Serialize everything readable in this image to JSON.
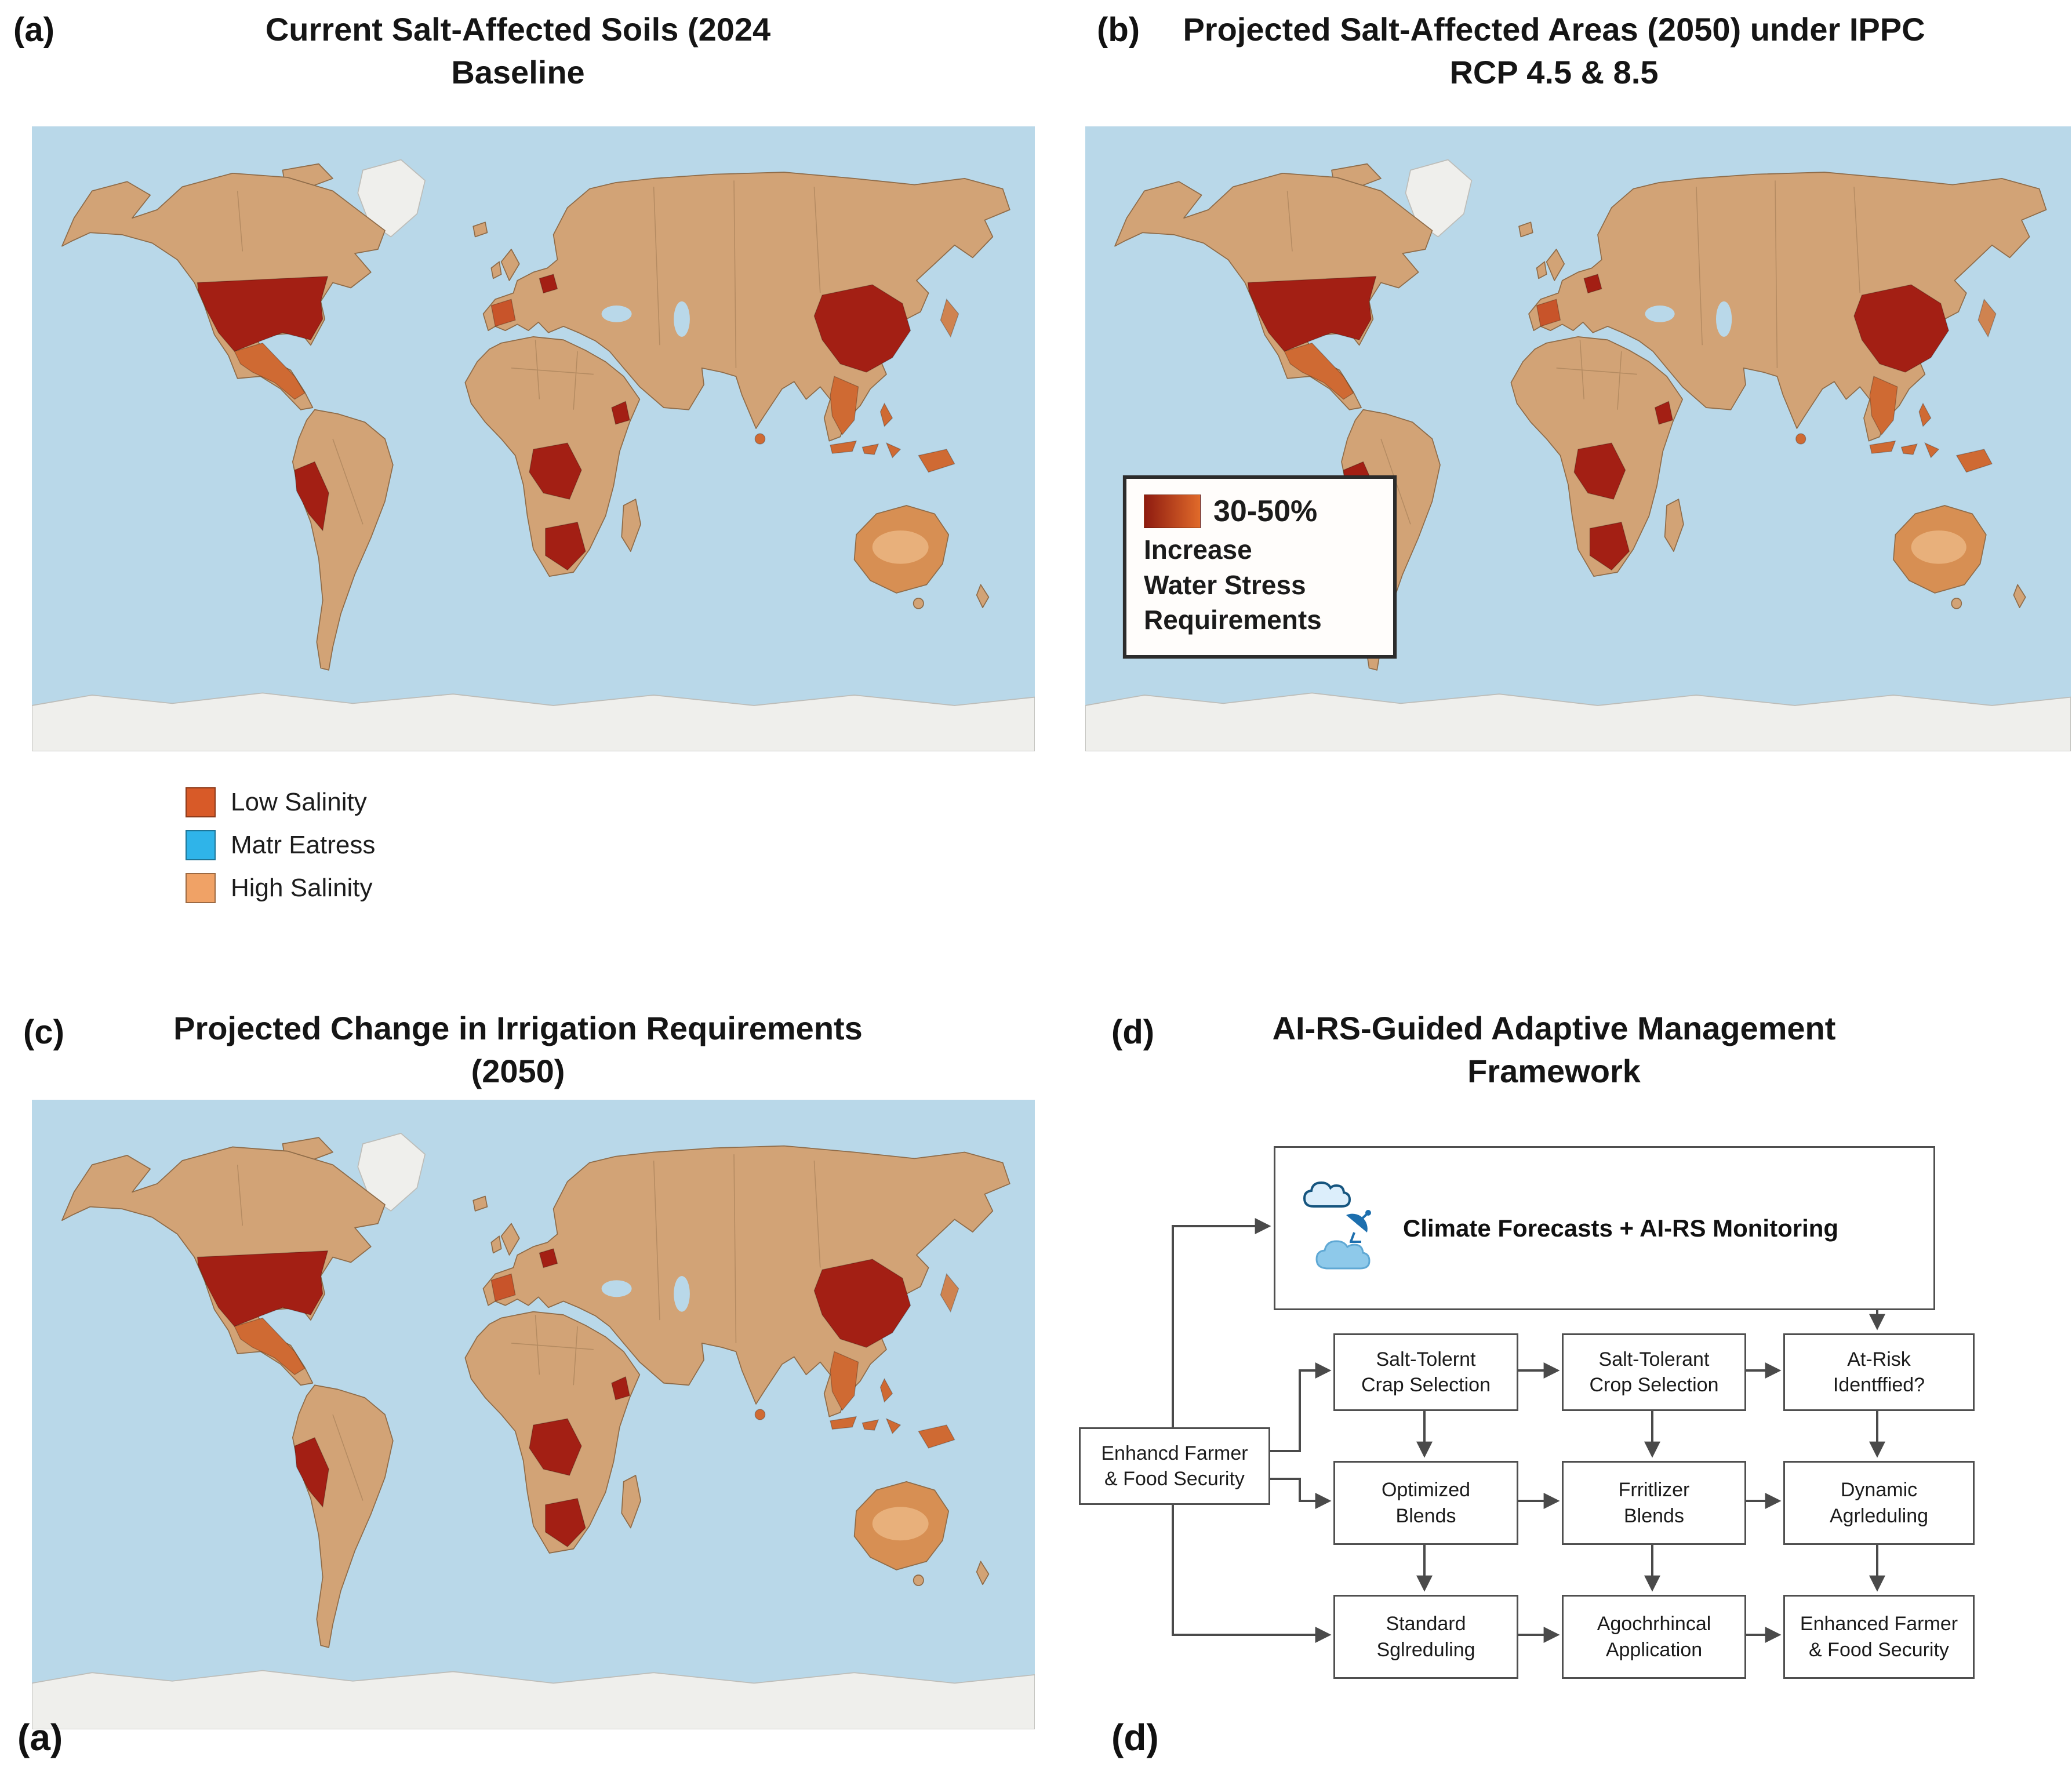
{
  "colors": {
    "ocean": "#b9d8e9",
    "land": "#d2a376",
    "land_stroke": "#8f6c49",
    "hotspot": "#a31f14",
    "orange": "#cf6a33",
    "australia": "#d78f53",
    "australia_inner": "#e8b07b",
    "ice": "#efefec",
    "ice_stroke": "#bdbdb9",
    "arrow": "#4a4a4a"
  },
  "panels": {
    "a": {
      "label": "(a)",
      "title": "Current Salt-Affected Soils (2024\nBaseline",
      "legend": [
        {
          "label": "Low Salinity",
          "color": "#d85a28"
        },
        {
          "label": "Matr Eatress",
          "color": "#2fb4e9"
        },
        {
          "label": "High Salinity",
          "color": "#f0a266"
        }
      ]
    },
    "b": {
      "label": "(b)",
      "title": "Projected Salt-Affected Areas (2050) under IPPC\nRCP 4.5 & 8.5",
      "callout": {
        "headline": "30-50%",
        "lines": "Increase\nWater Stress\nRequirements",
        "swatch_from": "#8e1b10",
        "swatch_to": "#e06a2a"
      }
    },
    "c": {
      "label": "(c)",
      "title": "Projected Change in Irrigation Requirements\n(2050)"
    },
    "d": {
      "label": "(d)",
      "title": "AI-RS-Guided Adaptive Management\nFramework",
      "flowchart": {
        "top_box": "Climate Forecasts + AI-RS Monitoring",
        "left_box": "Enhancd Farmer\n& Food Security",
        "grid": [
          [
            "Salt-Tolernt\nCrap Selection",
            "Salt-Tolerant\nCrop Selection",
            "At-Risk\nIdentffied?"
          ],
          [
            "Optimized\nBlends",
            "Frritlizer\nBlends",
            "Dynamic\nAgrleduling"
          ],
          [
            "Standard\nSglreduling",
            "Agochrhincal\nApplication",
            "Enhanced Farmer\n& Food Security"
          ]
        ]
      }
    }
  },
  "bottom_labels": {
    "left": "(a)",
    "right": "(d)"
  }
}
